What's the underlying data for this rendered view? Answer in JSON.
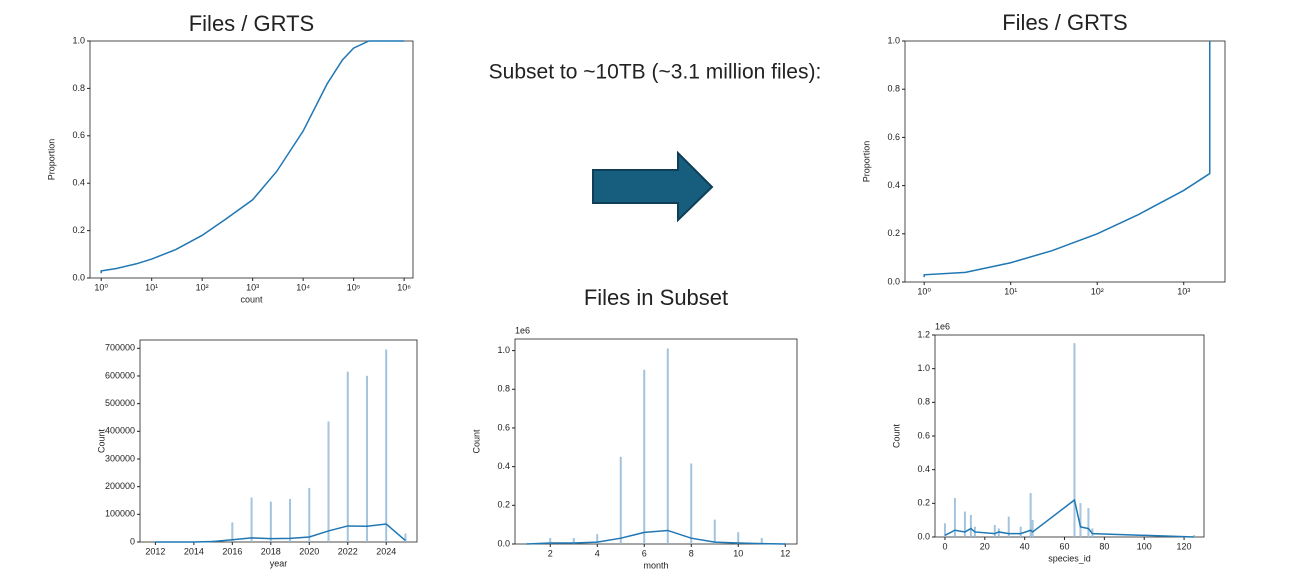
{
  "annotation": "Subset to ~10TB (~3.1 million files):",
  "chart_data": [
    {
      "type": "line",
      "title": "Files / GRTS",
      "xlabel": "count",
      "ylabel": "Proportion",
      "xscale": "log",
      "color": "#1f77b4",
      "x": [
        1,
        1,
        2,
        5,
        10,
        30,
        100,
        300,
        1000,
        3000,
        10000,
        30000,
        60000,
        100000,
        200000,
        1000000
      ],
      "values": [
        0.02,
        0.03,
        0.04,
        0.06,
        0.08,
        0.12,
        0.18,
        0.25,
        0.33,
        0.45,
        0.62,
        0.82,
        0.92,
        0.97,
        1.0,
        1.0
      ],
      "xlim": [
        0.6,
        1500000
      ],
      "xticks": [
        {
          "value": 1,
          "label": "10⁰"
        },
        {
          "value": 10,
          "label": "10¹"
        },
        {
          "value": 100,
          "label": "10²"
        },
        {
          "value": 1000,
          "label": "10³"
        },
        {
          "value": 10000,
          "label": "10⁴"
        },
        {
          "value": 100000,
          "label": "10⁵"
        },
        {
          "value": 1000000,
          "label": "10⁶"
        }
      ],
      "ylim": [
        0,
        1
      ],
      "yticks": [
        {
          "value": 0,
          "label": "0.0"
        },
        0.2,
        0.4,
        0.6,
        0.8,
        {
          "value": 1,
          "label": "1.0"
        }
      ]
    },
    {
      "type": "line",
      "title": "Files / GRTS",
      "ylabel": "Proportion",
      "xscale": "log",
      "color": "#1f77b4",
      "x": [
        1,
        1,
        3,
        10,
        30,
        100,
        300,
        1000,
        2000,
        2000
      ],
      "values": [
        0.02,
        0.03,
        0.04,
        0.08,
        0.13,
        0.2,
        0.28,
        0.38,
        0.45,
        1.0
      ],
      "xlim": [
        0.6,
        3000
      ],
      "xticks": [
        {
          "value": 1,
          "label": "10⁰"
        },
        {
          "value": 10,
          "label": "10¹"
        },
        {
          "value": 100,
          "label": "10²"
        },
        {
          "value": 1000,
          "label": "10³"
        }
      ],
      "ylim": [
        0,
        1
      ],
      "yticks": [
        {
          "value": 0,
          "label": "0.0"
        },
        0.2,
        0.4,
        0.6,
        0.8,
        {
          "value": 1,
          "label": "1.0"
        }
      ]
    },
    {
      "type": "bar",
      "xlabel": "year",
      "ylabel": "Count",
      "color": "#1f77b4",
      "bar_color": "#a9c6de",
      "x": [
        2012,
        2013,
        2014,
        2015,
        2016,
        2017,
        2018,
        2019,
        2020,
        2021,
        2022,
        2023,
        2024,
        2025
      ],
      "values": [
        0,
        0,
        0,
        5000,
        70000,
        160000,
        145000,
        155000,
        195000,
        435000,
        615000,
        600000,
        695000,
        30000
      ],
      "kde_values": [
        0,
        0,
        0,
        2000,
        8000,
        15000,
        12000,
        13000,
        18000,
        40000,
        58000,
        57000,
        65000,
        5000
      ],
      "xlim": [
        2011.2,
        2025.6
      ],
      "xticks": [
        2012,
        2014,
        2016,
        2018,
        2020,
        2022,
        2024
      ],
      "ylim": [
        0,
        730000
      ],
      "yticks": [
        0,
        100000,
        200000,
        300000,
        400000,
        500000,
        600000,
        700000
      ]
    },
    {
      "type": "bar",
      "title": "Files in Subset",
      "xlabel": "month",
      "ylabel": "Count",
      "offset_label": "1e6",
      "color": "#1f77b4",
      "bar_color": "#a9c6de",
      "x": [
        1,
        2,
        3,
        4,
        5,
        6,
        7,
        8,
        9,
        10,
        11,
        12
      ],
      "values": [
        0.005,
        0.03,
        0.03,
        0.05,
        0.45,
        0.9,
        1.01,
        0.415,
        0.125,
        0.06,
        0.03,
        0.005
      ],
      "kde_values": [
        0,
        0.005,
        0.005,
        0.01,
        0.03,
        0.06,
        0.07,
        0.03,
        0.01,
        0.005,
        0.002,
        0
      ],
      "xlim": [
        0.5,
        12.5
      ],
      "xticks": [
        2,
        4,
        6,
        8,
        10,
        12
      ],
      "ylim": [
        0,
        1.06
      ],
      "yticks": [
        {
          "value": 0,
          "label": "0.0"
        },
        0.2,
        0.4,
        0.6,
        0.8,
        {
          "value": 1,
          "label": "1.0"
        }
      ]
    },
    {
      "type": "bar",
      "xlabel": "species_id",
      "ylabel": "Count",
      "offset_label": "1e6",
      "color": "#1f77b4",
      "bar_color": "#a9c6de",
      "x": [
        0,
        5,
        10,
        13,
        15,
        25,
        27,
        32,
        38,
        43,
        44,
        65,
        68,
        72,
        74,
        125
      ],
      "values": [
        0.08,
        0.23,
        0.15,
        0.13,
        0.06,
        0.07,
        0.05,
        0.12,
        0.06,
        0.26,
        0.1,
        1.15,
        0.2,
        0.17,
        0.05,
        0.01
      ],
      "kde_values": [
        0.01,
        0.04,
        0.03,
        0.05,
        0.03,
        0.02,
        0.03,
        0.02,
        0.02,
        0.04,
        0.03,
        0.22,
        0.06,
        0.05,
        0.02,
        0
      ],
      "xlim": [
        -5,
        130
      ],
      "xticks": [
        0,
        20,
        40,
        60,
        80,
        100,
        120
      ],
      "ylim": [
        0,
        1.2
      ],
      "yticks": [
        {
          "value": 0,
          "label": "0.0"
        },
        0.2,
        0.4,
        0.6,
        0.8,
        {
          "value": 1,
          "label": "1.0"
        },
        1.2
      ]
    }
  ]
}
